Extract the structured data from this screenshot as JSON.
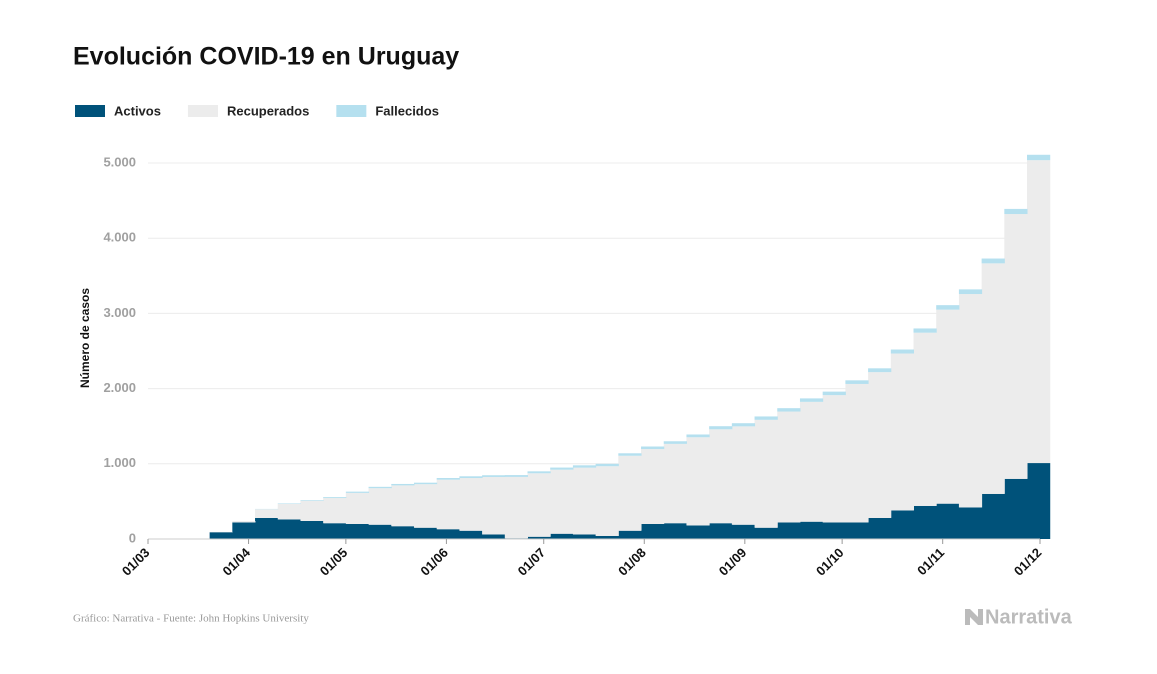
{
  "chart_data": {
    "type": "stacked-step",
    "title": "Evolución COVID-19 en Uruguay",
    "ylabel": "Número de casos",
    "source": "Gráfico: Narrativa - Fuente: John Hopkins University",
    "brand": "Narrativa",
    "x": [
      "13/03",
      "20/03",
      "27/03",
      "03/04",
      "10/04",
      "17/04",
      "24/04",
      "01/05",
      "08/05",
      "15/05",
      "22/05",
      "29/05",
      "05/06",
      "12/06",
      "19/06",
      "26/06",
      "03/07",
      "10/07",
      "17/07",
      "24/07",
      "31/07",
      "07/08",
      "14/08",
      "21/08",
      "28/08",
      "04/09",
      "11/09",
      "18/09",
      "25/09",
      "02/10",
      "09/10",
      "16/10",
      "23/10",
      "30/10",
      "06/11",
      "13/11",
      "20/11",
      "27/11"
    ],
    "series": [
      {
        "name": "Activos",
        "color": "#00527a",
        "values": [
          4,
          90,
          220,
          280,
          260,
          240,
          210,
          200,
          190,
          170,
          150,
          130,
          110,
          60,
          10,
          30,
          70,
          60,
          40,
          110,
          200,
          210,
          180,
          210,
          190,
          150,
          220,
          230,
          220,
          220,
          280,
          380,
          440,
          470,
          420,
          600,
          800,
          1010
        ]
      },
      {
        "name": "Recuperados",
        "color": "#ececec",
        "values": [
          0,
          4,
          18,
          116,
          206,
          268,
          335,
          413,
          486,
          543,
          579,
          659,
          701,
          765,
          816,
          844,
          852,
          889,
          928,
          997,
          996,
          1055,
          1173,
          1249,
          1308,
          1435,
          1475,
          1594,
          1693,
          1842,
          1939,
          2087,
          2304,
          2580,
          2838,
          3066,
          3522,
          4028
        ]
      },
      {
        "name": "Fallecidos",
        "color": "#b5e0ef",
        "values": [
          0,
          0,
          0,
          4,
          7,
          9,
          12,
          17,
          18,
          19,
          20,
          22,
          23,
          23,
          24,
          26,
          28,
          31,
          32,
          33,
          34,
          35,
          37,
          41,
          42,
          45,
          45,
          46,
          47,
          48,
          51,
          53,
          56,
          60,
          62,
          64,
          68,
          72
        ]
      }
    ],
    "xlim": [
      "01/03",
      "01/12"
    ],
    "xticks": [
      "01/03",
      "01/04",
      "01/05",
      "01/06",
      "01/07",
      "01/08",
      "01/09",
      "01/10",
      "01/11",
      "01/12"
    ],
    "ylim": [
      0,
      5200
    ],
    "yticks": [
      0,
      {
        "value": 1000,
        "label": "1.000"
      },
      {
        "value": 2000,
        "label": "2.000"
      },
      {
        "value": 3000,
        "label": "3.000"
      },
      {
        "value": 4000,
        "label": "4.000"
      },
      {
        "value": 5000,
        "label": "5.000"
      }
    ],
    "grid": true
  }
}
